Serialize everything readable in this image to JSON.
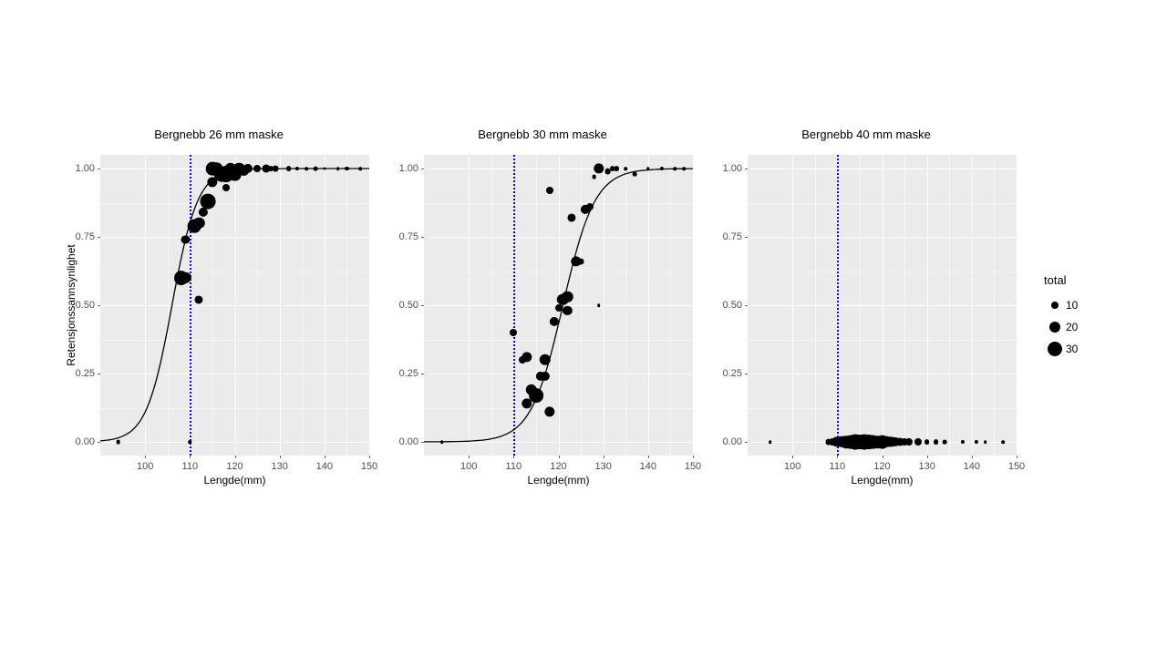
{
  "figure": {
    "background_color": "#ffffff",
    "panels": [
      {
        "title": "Bergnebb 26 mm maske",
        "xlim": [
          90,
          150
        ],
        "ylim": [
          -0.05,
          1.05
        ],
        "xticks": [
          100,
          110,
          120,
          130,
          140,
          150
        ],
        "yticks": [
          0.0,
          0.25,
          0.5,
          0.75,
          1.0
        ],
        "ytick_labels": [
          "0.00",
          "0.25",
          "0.50",
          "0.75",
          "1.00"
        ],
        "xlabel": "Lengde(mm)",
        "vline_x": 110,
        "curve": {
          "x0": 106,
          "k": 0.35
        },
        "points": [
          {
            "x": 94,
            "y": 0.0,
            "size": 8
          },
          {
            "x": 108,
            "y": 0.6,
            "size": 28
          },
          {
            "x": 109,
            "y": 0.6,
            "size": 22
          },
          {
            "x": 109,
            "y": 0.74,
            "size": 16
          },
          {
            "x": 110,
            "y": 0.0,
            "size": 6
          },
          {
            "x": 111,
            "y": 0.79,
            "size": 26
          },
          {
            "x": 112,
            "y": 0.8,
            "size": 22
          },
          {
            "x": 112,
            "y": 0.52,
            "size": 16
          },
          {
            "x": 113,
            "y": 0.84,
            "size": 18
          },
          {
            "x": 114,
            "y": 0.88,
            "size": 30
          },
          {
            "x": 115,
            "y": 1.0,
            "size": 26
          },
          {
            "x": 115,
            "y": 0.95,
            "size": 20
          },
          {
            "x": 116,
            "y": 1.0,
            "size": 24
          },
          {
            "x": 117,
            "y": 0.98,
            "size": 30
          },
          {
            "x": 118,
            "y": 0.98,
            "size": 32
          },
          {
            "x": 118,
            "y": 0.93,
            "size": 14
          },
          {
            "x": 119,
            "y": 1.0,
            "size": 22
          },
          {
            "x": 120,
            "y": 0.98,
            "size": 26
          },
          {
            "x": 121,
            "y": 1.0,
            "size": 22
          },
          {
            "x": 122,
            "y": 0.99,
            "size": 18
          },
          {
            "x": 123,
            "y": 1.0,
            "size": 18
          },
          {
            "x": 125,
            "y": 1.0,
            "size": 14
          },
          {
            "x": 127,
            "y": 1.0,
            "size": 16
          },
          {
            "x": 128,
            "y": 1.0,
            "size": 10
          },
          {
            "x": 129,
            "y": 1.0,
            "size": 12
          },
          {
            "x": 132,
            "y": 1.0,
            "size": 10
          },
          {
            "x": 134,
            "y": 1.0,
            "size": 7
          },
          {
            "x": 136,
            "y": 1.0,
            "size": 6
          },
          {
            "x": 138,
            "y": 1.0,
            "size": 8
          },
          {
            "x": 140,
            "y": 1.0,
            "size": 5
          },
          {
            "x": 143,
            "y": 1.0,
            "size": 6
          },
          {
            "x": 145,
            "y": 1.0,
            "size": 7
          },
          {
            "x": 148,
            "y": 1.0,
            "size": 6
          }
        ]
      },
      {
        "title": "Bergnebb 30 mm maske",
        "xlim": [
          90,
          150
        ],
        "ylim": [
          -0.05,
          1.05
        ],
        "xticks": [
          100,
          110,
          120,
          130,
          140,
          150
        ],
        "yticks": [
          0.0,
          0.25,
          0.5,
          0.75,
          1.0
        ],
        "ytick_labels": [
          "0.00",
          "0.25",
          "0.50",
          "0.75",
          "1.00"
        ],
        "xlabel": "Lengde(mm)",
        "vline_x": 110,
        "curve": {
          "x0": 121,
          "k": 0.28
        },
        "points": [
          {
            "x": 94,
            "y": 0.0,
            "size": 6
          },
          {
            "x": 110,
            "y": 0.4,
            "size": 14
          },
          {
            "x": 112,
            "y": 0.3,
            "size": 14
          },
          {
            "x": 113,
            "y": 0.14,
            "size": 20
          },
          {
            "x": 113,
            "y": 0.31,
            "size": 20
          },
          {
            "x": 114,
            "y": 0.19,
            "size": 22
          },
          {
            "x": 115,
            "y": 0.17,
            "size": 28
          },
          {
            "x": 116,
            "y": 0.24,
            "size": 18
          },
          {
            "x": 117,
            "y": 0.24,
            "size": 18
          },
          {
            "x": 117,
            "y": 0.3,
            "size": 22
          },
          {
            "x": 118,
            "y": 0.92,
            "size": 14
          },
          {
            "x": 118,
            "y": 0.11,
            "size": 20
          },
          {
            "x": 119,
            "y": 0.44,
            "size": 18
          },
          {
            "x": 120,
            "y": 0.49,
            "size": 14
          },
          {
            "x": 121,
            "y": 0.52,
            "size": 22
          },
          {
            "x": 122,
            "y": 0.53,
            "size": 22
          },
          {
            "x": 122,
            "y": 0.48,
            "size": 18
          },
          {
            "x": 123,
            "y": 0.82,
            "size": 16
          },
          {
            "x": 124,
            "y": 0.66,
            "size": 20
          },
          {
            "x": 125,
            "y": 0.66,
            "size": 12
          },
          {
            "x": 126,
            "y": 0.85,
            "size": 18
          },
          {
            "x": 127,
            "y": 0.86,
            "size": 14
          },
          {
            "x": 128,
            "y": 0.97,
            "size": 8
          },
          {
            "x": 129,
            "y": 0.5,
            "size": 6
          },
          {
            "x": 129,
            "y": 1.0,
            "size": 20
          },
          {
            "x": 131,
            "y": 0.99,
            "size": 12
          },
          {
            "x": 132,
            "y": 1.0,
            "size": 10
          },
          {
            "x": 133,
            "y": 1.0,
            "size": 10
          },
          {
            "x": 135,
            "y": 1.0,
            "size": 6
          },
          {
            "x": 137,
            "y": 0.98,
            "size": 8
          },
          {
            "x": 140,
            "y": 1.0,
            "size": 6
          },
          {
            "x": 143,
            "y": 1.0,
            "size": 7
          },
          {
            "x": 146,
            "y": 1.0,
            "size": 6
          },
          {
            "x": 148,
            "y": 1.0,
            "size": 6
          }
        ]
      },
      {
        "title": "Bergnebb 40 mm maske",
        "xlim": [
          90,
          150
        ],
        "ylim": [
          -0.05,
          1.05
        ],
        "xticks": [
          100,
          110,
          120,
          130,
          140,
          150
        ],
        "yticks": [
          0.0,
          0.25,
          0.5,
          0.75,
          1.0
        ],
        "ytick_labels": [
          "0.00",
          "0.25",
          "0.50",
          "0.75",
          "1.00"
        ],
        "xlabel": "Lengde(mm)",
        "vline_x": 110,
        "curve": null,
        "points": [
          {
            "x": 95,
            "y": 0.0,
            "size": 6
          },
          {
            "x": 108,
            "y": 0.0,
            "size": 12
          },
          {
            "x": 109,
            "y": 0.0,
            "size": 14
          },
          {
            "x": 110,
            "y": 0.0,
            "size": 20
          },
          {
            "x": 111,
            "y": 0.0,
            "size": 22
          },
          {
            "x": 112,
            "y": 0.0,
            "size": 24
          },
          {
            "x": 113,
            "y": 0.0,
            "size": 26
          },
          {
            "x": 114,
            "y": 0.0,
            "size": 30
          },
          {
            "x": 115,
            "y": 0.0,
            "size": 28
          },
          {
            "x": 116,
            "y": 0.0,
            "size": 30
          },
          {
            "x": 117,
            "y": 0.0,
            "size": 28
          },
          {
            "x": 118,
            "y": 0.0,
            "size": 26
          },
          {
            "x": 119,
            "y": 0.0,
            "size": 24
          },
          {
            "x": 120,
            "y": 0.0,
            "size": 26
          },
          {
            "x": 121,
            "y": 0.0,
            "size": 22
          },
          {
            "x": 122,
            "y": 0.0,
            "size": 20
          },
          {
            "x": 123,
            "y": 0.0,
            "size": 18
          },
          {
            "x": 124,
            "y": 0.0,
            "size": 16
          },
          {
            "x": 125,
            "y": 0.0,
            "size": 14
          },
          {
            "x": 126,
            "y": 0.0,
            "size": 14
          },
          {
            "x": 128,
            "y": 0.0,
            "size": 14
          },
          {
            "x": 130,
            "y": 0.0,
            "size": 10
          },
          {
            "x": 132,
            "y": 0.0,
            "size": 10
          },
          {
            "x": 134,
            "y": 0.0,
            "size": 8
          },
          {
            "x": 138,
            "y": 0.0,
            "size": 7
          },
          {
            "x": 141,
            "y": 0.0,
            "size": 7
          },
          {
            "x": 143,
            "y": 0.0,
            "size": 6
          },
          {
            "x": 147,
            "y": 0.0,
            "size": 6
          }
        ]
      }
    ],
    "y_axis_label": "Retensjonssannsynlighet",
    "legend": {
      "title": "total",
      "items": [
        {
          "label": "10",
          "diameter": 8
        },
        {
          "label": "20",
          "diameter": 12
        },
        {
          "label": "30",
          "diameter": 16
        }
      ]
    },
    "panel_bg": "#ebebeb",
    "grid_color": "#ffffff",
    "vline_color": "#0000ff",
    "point_color": "#000000",
    "curve_color": "#000000"
  }
}
